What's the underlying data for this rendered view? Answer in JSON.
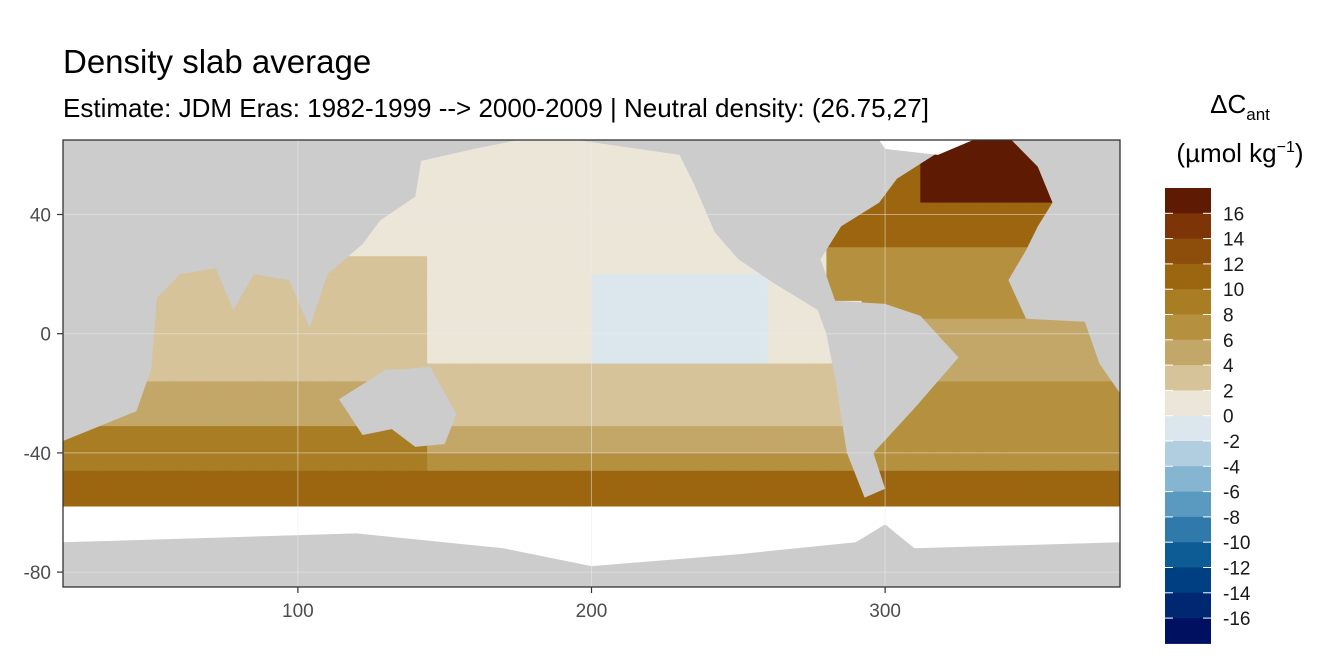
{
  "chart_data": {
    "type": "heatmap",
    "title": "Density slab average",
    "subtitle": "Estimate: JDM Eras: 1982-1999 --> 2000-2009 | Neutral density: (26.75,27]",
    "xlabel": "",
    "ylabel": "",
    "xlim": [
      20,
      380
    ],
    "ylim": [
      -85,
      65
    ],
    "x_ticks": [
      100,
      200,
      300
    ],
    "y_ticks": [
      40,
      0,
      -40,
      -80
    ],
    "grid": true,
    "background_color": "#cccccc",
    "legend": {
      "title_main": "ΔC",
      "title_sub": "ant",
      "unit_prefix": "(µmol kg",
      "unit_sup": "−1",
      "unit_suffix": ")",
      "placement": "right",
      "labels": [
        "16",
        "14",
        "12",
        "10",
        "8",
        "6",
        "4",
        "2",
        "0",
        "-2",
        "-4",
        "-6",
        "-8",
        "-10",
        "-12",
        "-14",
        "-16"
      ],
      "colors": [
        "#5e1a03",
        "#7d3508",
        "#8e4e0b",
        "#9c650f",
        "#a97d24",
        "#b5913f",
        "#c3a768",
        "#d6c39a",
        "#ece6d8",
        "#dbe7ec",
        "#b1cee0",
        "#86b5d1",
        "#5a99c0",
        "#2f7aaa",
        "#0d5c95",
        "#003f81",
        "#002771",
        "#001061"
      ]
    },
    "approx_field": {
      "description": "approximate delta C_ant values by latitude band (longitude-dependent)",
      "southern_ocean_band_deg_lat": [
        -57,
        -45
      ],
      "southern_ocean_value": 12,
      "north_atlantic_value": 16,
      "north_pacific_value": 1,
      "tropical_pacific_value": 0,
      "south_atlantic_value": 8,
      "south_pacific_value": 5,
      "indian_ocean_value": 4
    }
  }
}
